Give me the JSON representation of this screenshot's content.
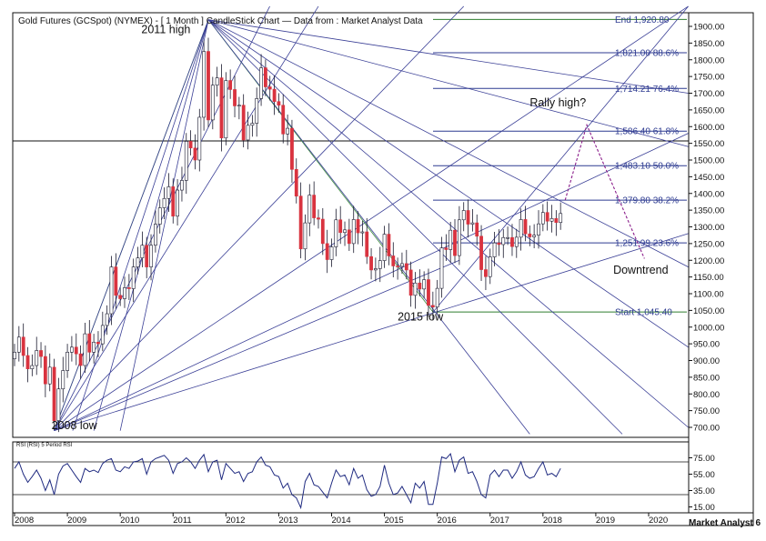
{
  "chart_data": [
    {
      "type": "candlestick",
      "title": "Gold Futures (GCSpot) (NYMEX) -  [ 1 Month ] CandleStick Chart — Data from : Market Analyst Data",
      "y_ticks": [
        700,
        750,
        800,
        850,
        900,
        950,
        1000,
        1050,
        1100,
        1150,
        1200,
        1250,
        1300,
        1350,
        1400,
        1450,
        1500,
        1550,
        1600,
        1650,
        1700,
        1750,
        1800,
        1850,
        1900
      ],
      "y_tick_labels": [
        "700.00",
        "750.00",
        "800.00",
        "850.00",
        "900.00",
        "950.00",
        "1000.00",
        "1050.00",
        "1100.00",
        "1150.00",
        "1200.00",
        "1250.00",
        "1300.00",
        "1350.00",
        "1400.00",
        "1450.00",
        "1500.00",
        "1550.00",
        "1600.00",
        "1650.00",
        "1700.00",
        "1750.00",
        "1800.00",
        "1850.00",
        "1900.00"
      ],
      "ylim": [
        680,
        1950
      ],
      "x_labels": [
        "2008",
        "2009",
        "2010",
        "2011",
        "2012",
        "2013",
        "2014",
        "2015",
        "2016",
        "2017",
        "2018",
        "2019",
        "2020"
      ],
      "xlim": [
        2008.0,
        2020.75
      ],
      "series_close": [
        [
          2008.0,
          925
        ],
        [
          2008.083,
          970
        ],
        [
          2008.167,
          915
        ],
        [
          2008.25,
          875
        ],
        [
          2008.333,
          885
        ],
        [
          2008.417,
          930
        ],
        [
          2008.5,
          912
        ],
        [
          2008.583,
          830
        ],
        [
          2008.667,
          880
        ],
        [
          2008.75,
          720
        ],
        [
          2008.833,
          815
        ],
        [
          2008.917,
          870
        ],
        [
          2009.0,
          925
        ],
        [
          2009.083,
          940
        ],
        [
          2009.167,
          920
        ],
        [
          2009.25,
          885
        ],
        [
          2009.333,
          980
        ],
        [
          2009.417,
          925
        ],
        [
          2009.5,
          955
        ],
        [
          2009.583,
          950
        ],
        [
          2009.667,
          1005
        ],
        [
          2009.75,
          1040
        ],
        [
          2009.833,
          1180
        ],
        [
          2009.917,
          1095
        ],
        [
          2010.0,
          1085
        ],
        [
          2010.083,
          1118
        ],
        [
          2010.167,
          1115
        ],
        [
          2010.25,
          1180
        ],
        [
          2010.333,
          1207
        ],
        [
          2010.417,
          1245
        ],
        [
          2010.5,
          1180
        ],
        [
          2010.583,
          1245
        ],
        [
          2010.667,
          1308
        ],
        [
          2010.75,
          1357
        ],
        [
          2010.833,
          1385
        ],
        [
          2010.917,
          1420
        ],
        [
          2011.0,
          1332
        ],
        [
          2011.083,
          1410
        ],
        [
          2011.167,
          1439
        ],
        [
          2011.25,
          1556
        ],
        [
          2011.333,
          1536
        ],
        [
          2011.417,
          1500
        ],
        [
          2011.5,
          1628
        ],
        [
          2011.583,
          1825
        ],
        [
          2011.667,
          1620
        ],
        [
          2011.75,
          1724
        ],
        [
          2011.833,
          1746
        ],
        [
          2011.917,
          1566
        ],
        [
          2012.0,
          1738
        ],
        [
          2012.083,
          1711
        ],
        [
          2012.167,
          1662
        ],
        [
          2012.25,
          1664
        ],
        [
          2012.333,
          1560
        ],
        [
          2012.417,
          1604
        ],
        [
          2012.5,
          1610
        ],
        [
          2012.583,
          1684
        ],
        [
          2012.667,
          1776
        ],
        [
          2012.75,
          1719
        ],
        [
          2012.833,
          1712
        ],
        [
          2012.917,
          1675
        ],
        [
          2013.0,
          1664
        ],
        [
          2013.083,
          1578
        ],
        [
          2013.167,
          1595
        ],
        [
          2013.25,
          1472
        ],
        [
          2013.333,
          1392
        ],
        [
          2013.417,
          1234
        ],
        [
          2013.5,
          1312
        ],
        [
          2013.583,
          1395
        ],
        [
          2013.667,
          1327
        ],
        [
          2013.75,
          1323
        ],
        [
          2013.833,
          1250
        ],
        [
          2013.917,
          1202
        ],
        [
          2014.0,
          1240
        ],
        [
          2014.083,
          1321
        ],
        [
          2014.167,
          1283
        ],
        [
          2014.25,
          1291
        ],
        [
          2014.333,
          1250
        ],
        [
          2014.417,
          1322
        ],
        [
          2014.5,
          1282
        ],
        [
          2014.583,
          1285
        ],
        [
          2014.667,
          1211
        ],
        [
          2014.75,
          1171
        ],
        [
          2014.833,
          1175
        ],
        [
          2014.917,
          1199
        ],
        [
          2015.0,
          1278
        ],
        [
          2015.083,
          1213
        ],
        [
          2015.167,
          1183
        ],
        [
          2015.25,
          1182
        ],
        [
          2015.333,
          1190
        ],
        [
          2015.417,
          1171
        ],
        [
          2015.5,
          1095
        ],
        [
          2015.583,
          1132
        ],
        [
          2015.667,
          1114
        ],
        [
          2015.75,
          1142
        ],
        [
          2015.833,
          1065
        ],
        [
          2015.917,
          1060
        ],
        [
          2016.0,
          1116
        ],
        [
          2016.083,
          1237
        ],
        [
          2016.167,
          1232
        ],
        [
          2016.25,
          1290
        ],
        [
          2016.333,
          1214
        ],
        [
          2016.417,
          1321
        ],
        [
          2016.5,
          1349
        ],
        [
          2016.583,
          1308
        ],
        [
          2016.667,
          1312
        ],
        [
          2016.75,
          1272
        ],
        [
          2016.833,
          1172
        ],
        [
          2016.917,
          1151
        ],
        [
          2017.0,
          1210
        ],
        [
          2017.083,
          1252
        ],
        [
          2017.167,
          1247
        ],
        [
          2017.25,
          1268
        ],
        [
          2017.333,
          1268
        ],
        [
          2017.417,
          1241
        ],
        [
          2017.5,
          1269
        ],
        [
          2017.583,
          1322
        ],
        [
          2017.667,
          1279
        ],
        [
          2017.75,
          1270
        ],
        [
          2017.833,
          1275
        ],
        [
          2017.917,
          1309
        ],
        [
          2018.0,
          1343
        ],
        [
          2018.083,
          1317
        ],
        [
          2018.167,
          1325
        ],
        [
          2018.25,
          1313
        ],
        [
          2018.333,
          1340
        ]
      ],
      "fib_levels": [
        {
          "value": 1920.8,
          "label": "End 1,920.80",
          "color": "#2f7d2f"
        },
        {
          "value": 1821.0,
          "label": "1,821.00 88.6%",
          "color": "#2c3a90"
        },
        {
          "value": 1714.21,
          "label": "1,714.21 76.4%",
          "color": "#2c3a90"
        },
        {
          "value": 1586.4,
          "label": "1,586.40 61.8%",
          "color": "#2c3a90"
        },
        {
          "value": 1483.1,
          "label": "1,483.10 50.0%",
          "color": "#2c3a90"
        },
        {
          "value": 1379.8,
          "label": "1,379.80 38.2%",
          "color": "#2c3a90"
        },
        {
          "value": 1251.99,
          "label": "1,251.99 23.6%",
          "color": "#2c3a90"
        },
        {
          "value": 1045.4,
          "label": "Start 1,045.40",
          "color": "#2f7d2f"
        }
      ],
      "horizontal_line": 1557,
      "annotations": [
        {
          "text": "2011 high",
          "x": 2010.4,
          "y": 1880
        },
        {
          "text": "2008 low",
          "x": 2008.7,
          "y": 695
        },
        {
          "text": "2015 low",
          "x": 2015.25,
          "y": 1020
        },
        {
          "text": "Rally high?",
          "x": 2017.75,
          "y": 1660
        },
        {
          "text": "Downtrend",
          "x": 2019.33,
          "y": 1160
        }
      ],
      "projection": [
        [
          2018.42,
          1380
        ],
        [
          2018.83,
          1605
        ],
        [
          2019.92,
          1205
        ]
      ],
      "colors": {
        "up": "#ffffff",
        "down": "#d9333f",
        "fan": "#3a3f96",
        "fan_green": "#3b8a3b"
      }
    },
    {
      "type": "line",
      "title": "RSI (RSI) 5 Period RSI",
      "y_ticks": [
        15,
        35,
        55,
        75
      ],
      "y_tick_labels": [
        "15.00",
        "35.00",
        "55.00",
        "75.00"
      ],
      "ylim": [
        10,
        90
      ],
      "reference_lines": [
        70,
        30
      ],
      "series": [
        {
          "values": [
            62,
            70,
            55,
            45,
            52,
            60,
            50,
            35,
            48,
            30,
            55,
            65,
            68,
            60,
            52,
            45,
            62,
            58,
            60,
            57,
            68,
            72,
            74,
            60,
            58,
            64,
            62,
            70,
            71,
            74,
            55,
            70,
            74,
            76,
            78,
            72,
            56,
            68,
            70,
            75,
            70,
            62,
            72,
            79,
            58,
            70,
            72,
            48,
            68,
            62,
            56,
            58,
            46,
            56,
            58,
            70,
            76,
            66,
            64,
            54,
            52,
            38,
            44,
            30,
            26,
            14,
            46,
            56,
            42,
            40,
            33,
            26,
            44,
            60,
            52,
            54,
            42,
            62,
            50,
            54,
            36,
            28,
            30,
            40,
            66,
            44,
            30,
            32,
            40,
            30,
            20,
            44,
            38,
            46,
            18,
            18,
            44,
            76,
            74,
            80,
            58,
            72,
            76,
            56,
            58,
            46,
            30,
            26,
            54,
            60,
            52,
            60,
            60,
            50,
            58,
            70,
            54,
            50,
            52,
            62,
            70,
            54,
            56,
            52,
            62
          ]
        }
      ]
    }
  ],
  "footer": {
    "brand": "Market Analyst 6"
  }
}
